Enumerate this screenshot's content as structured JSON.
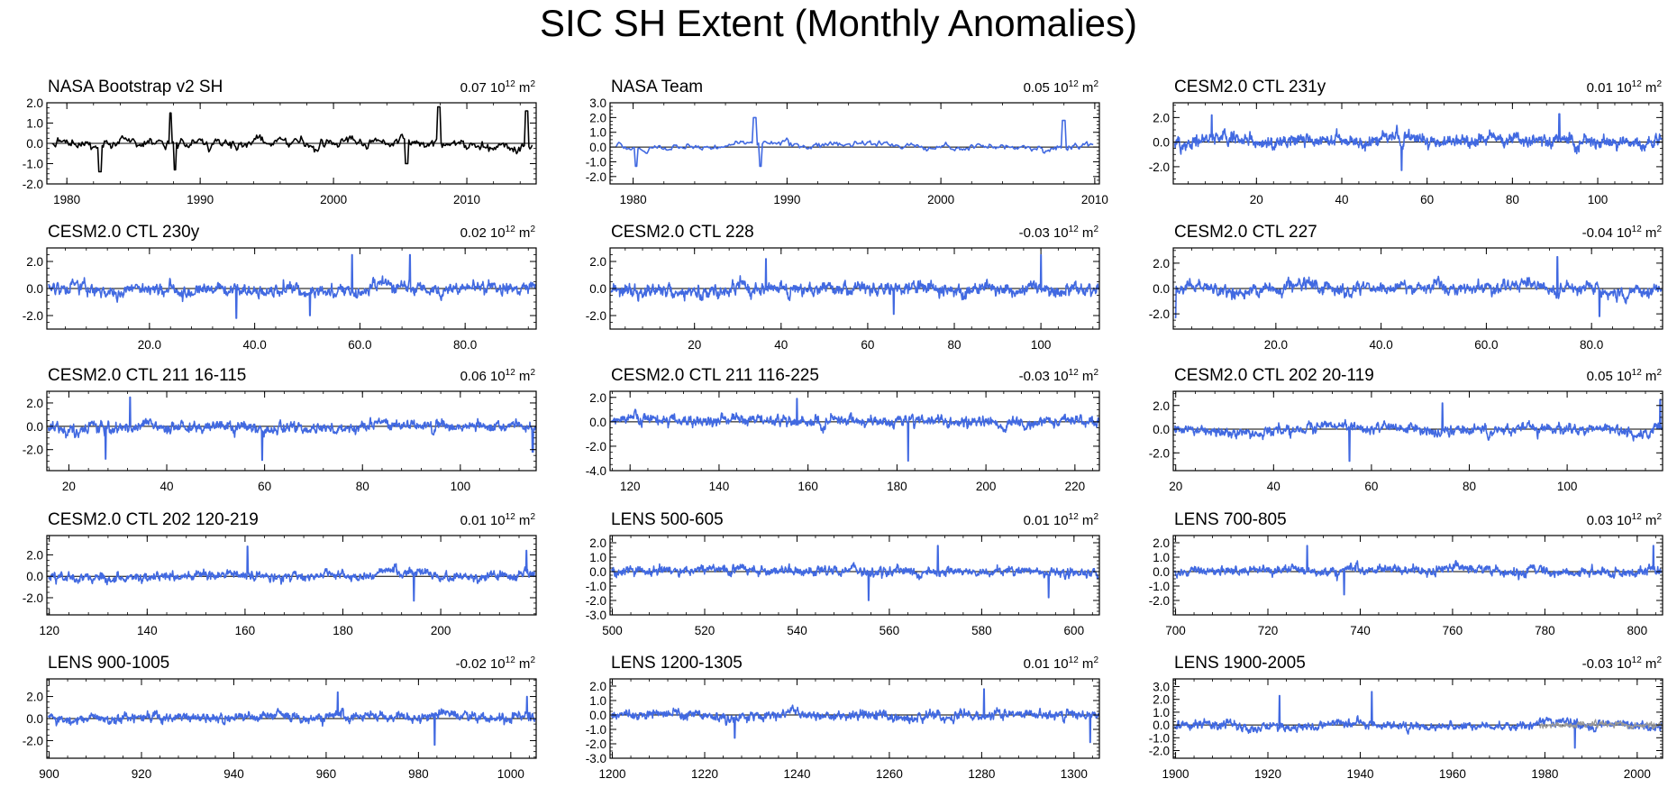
{
  "title": "SIC SH Extent (Monthly Anomalies)",
  "colors": {
    "obs": "#000000",
    "model": "#4169e1",
    "overlay": "#999999",
    "axis": "#000000",
    "zero": "#000000"
  },
  "unit_label": {
    "base": "10",
    "exp": "12",
    "unit": "m",
    "unit_exp": "2"
  },
  "chart_data": [
    {
      "type": "line",
      "title": "NASA Bootstrap v2 SH",
      "mean": "0.07",
      "xlim": [
        1978.5,
        2015.2
      ],
      "ylim": [
        -2.0,
        2.0
      ],
      "yticks": [
        -2.0,
        -1.0,
        0.0,
        1.0,
        2.0
      ],
      "ytick_labels": [
        "-2.0",
        "-1.0",
        "0.0",
        "1.0",
        "2.0"
      ],
      "xticks": [
        1980,
        1990,
        2000,
        2010
      ],
      "xtick_labels": [
        "1980",
        "1990",
        "2000",
        "2010"
      ],
      "series": [
        {
          "name": "NASA Bootstrap v2 SH",
          "color": "obs",
          "x_start": 1978.9,
          "x_end": 2014.9,
          "amp": 0.4,
          "seed": 11,
          "events": [
            [
              1982.5,
              -1.4
            ],
            [
              1987.8,
              1.5
            ],
            [
              1988.1,
              -1.3
            ],
            [
              2007.9,
              1.8
            ],
            [
              2014.5,
              1.6
            ],
            [
              2005.5,
              -1.0
            ]
          ]
        }
      ]
    },
    {
      "type": "line",
      "title": "NASA Team",
      "mean": "0.05",
      "xlim": [
        1978.5,
        2010.3
      ],
      "ylim": [
        -2.5,
        3.0
      ],
      "yticks": [
        -2.0,
        -1.0,
        0.0,
        1.0,
        2.0,
        3.0
      ],
      "ytick_labels": [
        "-2.0",
        "-1.0",
        "0.0",
        "1.0",
        "2.0",
        "3.0"
      ],
      "xticks": [
        1980,
        1990,
        2000,
        2010
      ],
      "xtick_labels": [
        "1980",
        "1990",
        "2000",
        "2010"
      ],
      "series": [
        {
          "name": "NASA Team",
          "color": "model",
          "x_start": 1978.9,
          "x_end": 2009.9,
          "amp": 0.35,
          "seed": 12,
          "events": [
            [
              1987.9,
              2.0
            ],
            [
              1988.3,
              -1.3
            ],
            [
              1980.2,
              -1.3
            ],
            [
              2008.0,
              1.8
            ]
          ]
        }
      ]
    },
    {
      "type": "line",
      "title": "CESM2.0 CTL 231y",
      "mean": "0.01",
      "xlim": [
        0.5,
        115.2
      ],
      "ylim": [
        -3.4,
        3.2
      ],
      "yticks": [
        -2.0,
        0.0,
        2.0
      ],
      "ytick_labels": [
        "-2.0",
        "0.0",
        "2.0"
      ],
      "xticks": [
        20,
        40,
        60,
        80,
        100
      ],
      "xtick_labels": [
        "20",
        "40",
        "60",
        "80",
        "100"
      ],
      "series": [
        {
          "name": "CESM2.0 CTL 231y",
          "color": "model",
          "x_start": 0.8,
          "x_end": 115.0,
          "amp": 0.7,
          "seed": 13,
          "events": [
            [
              9.5,
              2.2
            ],
            [
              54,
              -2.3
            ],
            [
              91,
              2.3
            ]
          ]
        }
      ]
    },
    {
      "type": "line",
      "title": "CESM2.0 CTL 230y",
      "mean": "0.02",
      "xlim": [
        0.5,
        93.5
      ],
      "ylim": [
        -3.0,
        3.0
      ],
      "yticks": [
        -2.0,
        0.0,
        2.0
      ],
      "ytick_labels": [
        "-2.0",
        "0.0",
        "2.0"
      ],
      "xticks": [
        20,
        40,
        60,
        80
      ],
      "xtick_labels": [
        "20.0",
        "40.0",
        "60.0",
        "80.0"
      ],
      "series": [
        {
          "name": "CESM2.0 CTL 230y",
          "color": "model",
          "x_start": 0.8,
          "x_end": 93.3,
          "amp": 0.65,
          "seed": 14,
          "events": [
            [
              36.5,
              -2.2
            ],
            [
              50.5,
              -2.0
            ],
            [
              58.5,
              2.5
            ],
            [
              69.5,
              2.5
            ]
          ]
        }
      ]
    },
    {
      "type": "line",
      "title": "CESM2.0 CTL 228",
      "mean": "-0.03",
      "xlim": [
        0.5,
        113.5
      ],
      "ylim": [
        -3.0,
        3.0
      ],
      "yticks": [
        -2.0,
        0.0,
        2.0
      ],
      "ytick_labels": [
        "-2.0",
        "0.0",
        "2.0"
      ],
      "xticks": [
        20,
        40,
        60,
        80,
        100
      ],
      "xtick_labels": [
        "20",
        "40",
        "60",
        "80",
        "100"
      ],
      "series": [
        {
          "name": "CESM2.0 CTL 228",
          "color": "model",
          "x_start": 0.8,
          "x_end": 113.3,
          "amp": 0.65,
          "seed": 15,
          "events": [
            [
              36.5,
              2.2
            ],
            [
              66,
              -1.9
            ],
            [
              100,
              2.5
            ]
          ]
        }
      ]
    },
    {
      "type": "line",
      "title": "CESM2.0 CTL 227",
      "mean": "-0.04",
      "xlim": [
        0.5,
        93.5
      ],
      "ylim": [
        -3.2,
        3.2
      ],
      "yticks": [
        -2.0,
        0.0,
        2.0
      ],
      "ytick_labels": [
        "-2.0",
        "0.0",
        "2.0"
      ],
      "xticks": [
        20,
        40,
        60,
        80
      ],
      "xtick_labels": [
        "20.0",
        "40.0",
        "60.0",
        "80.0"
      ],
      "series": [
        {
          "name": "CESM2.0 CTL 227",
          "color": "model",
          "x_start": 0.8,
          "x_end": 93.3,
          "amp": 0.7,
          "seed": 16,
          "events": [
            [
              0.9,
              -2.3
            ],
            [
              73.5,
              2.5
            ],
            [
              81.5,
              -2.2
            ]
          ]
        }
      ]
    },
    {
      "type": "line",
      "title": "CESM2.0 CTL 211 16-115",
      "mean": "0.06",
      "xlim": [
        15.5,
        115.5
      ],
      "ylim": [
        -3.8,
        3.0
      ],
      "yticks": [
        -2.0,
        0.0,
        2.0
      ],
      "ytick_labels": [
        "-2.0",
        "0.0",
        "2.0"
      ],
      "xticks": [
        20,
        40,
        60,
        80,
        100
      ],
      "xtick_labels": [
        "20",
        "40",
        "60",
        "80",
        "100"
      ],
      "series": [
        {
          "name": "CESM2.0 CTL 211 16-115",
          "color": "model",
          "x_start": 15.8,
          "x_end": 115.3,
          "amp": 0.65,
          "seed": 17,
          "events": [
            [
              27.5,
              -2.8
            ],
            [
              32.5,
              2.5
            ],
            [
              59.5,
              -2.9
            ],
            [
              114.8,
              -2.2
            ]
          ]
        }
      ]
    },
    {
      "type": "line",
      "title": "CESM2.0 CTL 211 116-225",
      "mean": "-0.03",
      "xlim": [
        115.5,
        225.5
      ],
      "ylim": [
        -4.0,
        2.5
      ],
      "yticks": [
        -4.0,
        -2.0,
        0.0,
        2.0
      ],
      "ytick_labels": [
        "-4.0",
        "-2.0",
        "0.0",
        "2.0"
      ],
      "xticks": [
        120,
        140,
        160,
        180,
        200,
        220
      ],
      "xtick_labels": [
        "120",
        "140",
        "160",
        "180",
        "200",
        "220"
      ],
      "series": [
        {
          "name": "CESM2.0 CTL 211 116-225",
          "color": "model",
          "x_start": 115.8,
          "x_end": 225.3,
          "amp": 0.6,
          "seed": 18,
          "events": [
            [
              157.5,
              1.9
            ],
            [
              182.5,
              -3.2
            ]
          ]
        }
      ]
    },
    {
      "type": "line",
      "title": "CESM2.0 CTL 202 20-119",
      "mean": "0.05",
      "xlim": [
        19.5,
        119.5
      ],
      "ylim": [
        -3.5,
        3.2
      ],
      "yticks": [
        -2.0,
        0.0,
        2.0
      ],
      "ytick_labels": [
        "-2.0",
        "0.0",
        "2.0"
      ],
      "xticks": [
        20,
        40,
        60,
        80,
        100
      ],
      "xtick_labels": [
        "20",
        "40",
        "60",
        "80",
        "100"
      ],
      "series": [
        {
          "name": "CESM2.0 CTL 202 20-119",
          "color": "model",
          "x_start": 19.8,
          "x_end": 119.3,
          "amp": 0.6,
          "seed": 19,
          "events": [
            [
              55.5,
              -2.7
            ],
            [
              74.5,
              2.2
            ],
            [
              119.0,
              2.5
            ]
          ]
        }
      ]
    },
    {
      "type": "line",
      "title": "CESM2.0 CTL 202 120-219",
      "mean": "0.01",
      "xlim": [
        119.5,
        219.5
      ],
      "ylim": [
        -3.6,
        3.8
      ],
      "yticks": [
        -2.0,
        0.0,
        2.0
      ],
      "ytick_labels": [
        "-2.0",
        "0.0",
        "2.0"
      ],
      "xticks": [
        120,
        140,
        160,
        180,
        200
      ],
      "xtick_labels": [
        "120",
        "140",
        "160",
        "180",
        "200"
      ],
      "series": [
        {
          "name": "CESM2.0 CTL 202 120-219",
          "color": "model",
          "x_start": 119.8,
          "x_end": 219.3,
          "amp": 0.6,
          "seed": 20,
          "events": [
            [
              160.5,
              2.8
            ],
            [
              194.5,
              -2.3
            ],
            [
              217.5,
              2.4
            ]
          ]
        }
      ]
    },
    {
      "type": "line",
      "title": "LENS 500-605",
      "mean": "0.01",
      "xlim": [
        499.5,
        605.5
      ],
      "ylim": [
        -3.0,
        2.5
      ],
      "yticks": [
        -3.0,
        -2.0,
        -1.0,
        0.0,
        1.0,
        2.0
      ],
      "ytick_labels": [
        "-3.0",
        "-2.0",
        "-1.0",
        "0.0",
        "1.0",
        "2.0"
      ],
      "xticks": [
        500,
        520,
        540,
        560,
        580,
        600
      ],
      "xtick_labels": [
        "500",
        "520",
        "540",
        "560",
        "580",
        "600"
      ],
      "series": [
        {
          "name": "LENS 500-605",
          "color": "model",
          "x_start": 499.8,
          "x_end": 605.3,
          "amp": 0.45,
          "seed": 21,
          "events": [
            [
              555.5,
              -2.0
            ],
            [
              570.5,
              1.8
            ],
            [
              594.5,
              -1.8
            ]
          ]
        }
      ]
    },
    {
      "type": "line",
      "title": "LENS 700-805",
      "mean": "0.03",
      "xlim": [
        699.5,
        805.5
      ],
      "ylim": [
        -3.0,
        2.5
      ],
      "yticks": [
        -2.0,
        -1.0,
        0.0,
        1.0,
        2.0
      ],
      "ytick_labels": [
        "-2.0",
        "-1.0",
        "0.0",
        "1.0",
        "2.0"
      ],
      "xticks": [
        700,
        720,
        740,
        760,
        780,
        800
      ],
      "xtick_labels": [
        "700",
        "720",
        "740",
        "760",
        "780",
        "800"
      ],
      "series": [
        {
          "name": "LENS 700-805",
          "color": "model",
          "x_start": 699.8,
          "x_end": 805.3,
          "amp": 0.45,
          "seed": 22,
          "events": [
            [
              728.5,
              1.8
            ],
            [
              736.5,
              -1.6
            ],
            [
              803.5,
              1.8
            ]
          ]
        }
      ]
    },
    {
      "type": "line",
      "title": "LENS 900-1005",
      "mean": "-0.02",
      "xlim": [
        899.5,
        1005.5
      ],
      "ylim": [
        -3.6,
        3.6
      ],
      "yticks": [
        -2.0,
        0.0,
        2.0
      ],
      "ytick_labels": [
        "-2.0",
        "0.0",
        "2.0"
      ],
      "xticks": [
        900,
        920,
        940,
        960,
        980,
        1000
      ],
      "xtick_labels": [
        "900",
        "920",
        "940",
        "960",
        "980",
        "1000"
      ],
      "series": [
        {
          "name": "LENS 900-1005",
          "color": "model",
          "x_start": 899.8,
          "x_end": 1005.3,
          "amp": 0.6,
          "seed": 23,
          "events": [
            [
              962.5,
              2.4
            ],
            [
              983.5,
              -2.4
            ],
            [
              1003.5,
              2.0
            ]
          ]
        }
      ]
    },
    {
      "type": "line",
      "title": "LENS 1200-1305",
      "mean": "0.01",
      "xlim": [
        1199.5,
        1305.5
      ],
      "ylim": [
        -3.0,
        2.5
      ],
      "yticks": [
        -3.0,
        -2.0,
        -1.0,
        0.0,
        1.0,
        2.0
      ],
      "ytick_labels": [
        "-3.0",
        "-2.0",
        "-1.0",
        "0.0",
        "1.0",
        "2.0"
      ],
      "xticks": [
        1200,
        1220,
        1240,
        1260,
        1280,
        1300
      ],
      "xtick_labels": [
        "1200",
        "1220",
        "1240",
        "1260",
        "1280",
        "1300"
      ],
      "series": [
        {
          "name": "LENS 1200-1305",
          "color": "model",
          "x_start": 1199.8,
          "x_end": 1305.3,
          "amp": 0.45,
          "seed": 24,
          "events": [
            [
              1280.5,
              1.8
            ],
            [
              1303.5,
              -1.9
            ],
            [
              1226.5,
              -1.6
            ]
          ]
        }
      ]
    },
    {
      "type": "line",
      "title": "LENS 1900-2005",
      "mean": "-0.03",
      "xlim": [
        1899.5,
        2005.5
      ],
      "ylim": [
        -2.6,
        3.6
      ],
      "yticks": [
        -2.0,
        -1.0,
        0.0,
        1.0,
        2.0,
        3.0
      ],
      "ytick_labels": [
        "-2.0",
        "-1.0",
        "0.0",
        "1.0",
        "2.0",
        "3.0"
      ],
      "xticks": [
        1900,
        1920,
        1940,
        1960,
        1980,
        2000
      ],
      "xtick_labels": [
        "1900",
        "1920",
        "1940",
        "1960",
        "1980",
        "2000"
      ],
      "series": [
        {
          "name": "LENS 1900-2005",
          "color": "model",
          "x_start": 1899.8,
          "x_end": 2005.3,
          "amp": 0.45,
          "seed": 25,
          "events": [
            [
              1922.5,
              2.3
            ],
            [
              1942.5,
              2.6
            ],
            [
              1986.5,
              -1.8
            ]
          ]
        },
        {
          "name": "observed overlay",
          "color": "overlay",
          "x_start": 1978.9,
          "x_end": 2005.3,
          "amp": 0.35,
          "seed": 26,
          "events": []
        }
      ]
    }
  ]
}
